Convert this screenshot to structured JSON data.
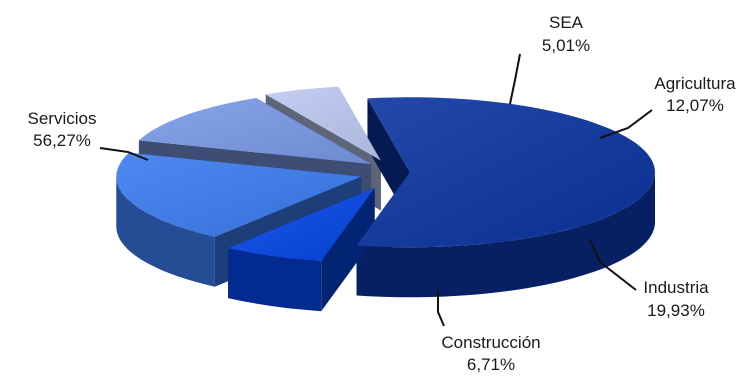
{
  "chart_data": {
    "type": "pie",
    "title": "",
    "style": "3d-exploded",
    "legend": "none",
    "slices": [
      {
        "name": "Servicios",
        "value": 56.27,
        "label": "56,27%",
        "color": "#0a34a0"
      },
      {
        "name": "Construcción",
        "value": 6.71,
        "label": "6,71%",
        "color": "#0546e6"
      },
      {
        "name": "Industria",
        "value": 19.93,
        "label": "19,93%",
        "color": "#3a7cf0"
      },
      {
        "name": "Agricultura",
        "value": 12.07,
        "label": "12,07%",
        "color": "#7a9ae8"
      },
      {
        "name": "SEA",
        "value": 5.01,
        "label": "5,01%",
        "color": "#bccaf2"
      }
    ]
  }
}
